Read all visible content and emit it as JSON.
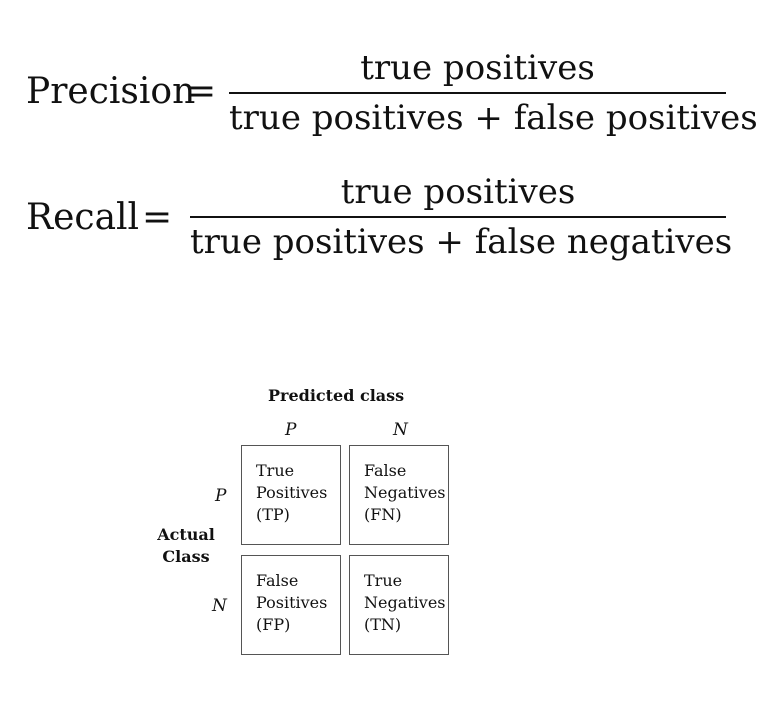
{
  "precision": {
    "lhs": "Precision",
    "equals": "=",
    "numerator": "true positives",
    "denominator": "true positives + false positives"
  },
  "recall": {
    "lhs": "Recall",
    "equals": "=",
    "numerator": "true positives",
    "denominator": "true positives + false negatives"
  },
  "matrix": {
    "predicted_title": "Predicted class",
    "col_p": "P",
    "col_n": "N",
    "row_p": "P",
    "row_n": "N",
    "actual_line1": "Actual",
    "actual_line2": "Class",
    "tp": [
      "True",
      "Positives",
      "(TP)"
    ],
    "fn": [
      "False",
      "Negatives",
      "(FN)"
    ],
    "fp": [
      "False",
      "Positives",
      "(FP)"
    ],
    "tn": [
      "True",
      "Negatives",
      "(TN)"
    ]
  }
}
